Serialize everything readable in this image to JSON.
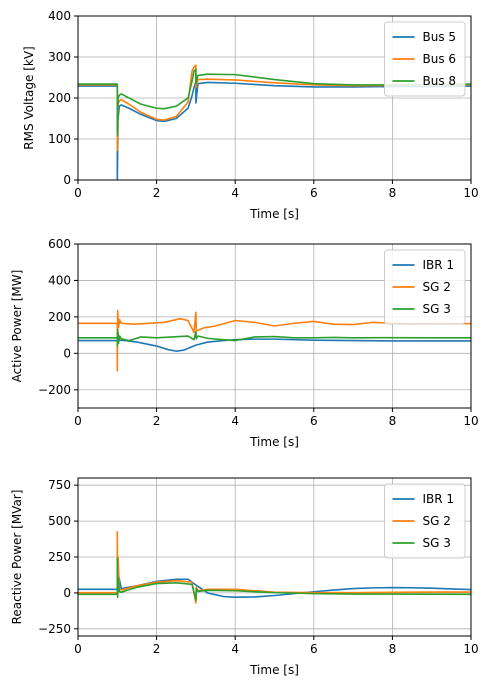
{
  "chart_data": [
    {
      "type": "line",
      "xlabel": "Time [s]",
      "ylabel": "RMS Voltage [kV]",
      "xlim": [
        0,
        10
      ],
      "ylim": [
        0,
        400
      ],
      "xticks": [
        "0",
        "2",
        "4",
        "6",
        "8",
        "10"
      ],
      "yticks": [
        "0",
        "100",
        "200",
        "300",
        "400"
      ],
      "grid": true,
      "legend": "top-right",
      "series": [
        {
          "name": "Bus 5",
          "color": "#1f77b4",
          "x": [
            0,
            1.0,
            1.0,
            1.02,
            1.05,
            1.1,
            1.3,
            1.6,
            2.0,
            2.2,
            2.5,
            2.8,
            2.9,
            2.95,
            3.0,
            3.0,
            3.05,
            3.3,
            4.0,
            5.0,
            6.0,
            7.0,
            8.0,
            9.0,
            10.0
          ],
          "y": [
            229,
            229,
            0,
            150,
            180,
            183,
            175,
            160,
            145,
            143,
            150,
            175,
            205,
            225,
            240,
            188,
            235,
            238,
            236,
            230,
            227,
            227,
            228,
            228,
            229
          ]
        },
        {
          "name": "Bus 6",
          "color": "#ff7f0e",
          "x": [
            0,
            1.0,
            1.0,
            1.02,
            1.05,
            1.1,
            1.3,
            1.6,
            2.0,
            2.2,
            2.5,
            2.8,
            2.9,
            2.95,
            3.0,
            3.0,
            3.05,
            3.3,
            4.0,
            5.0,
            6.0,
            7.0,
            8.0,
            9.0,
            10.0
          ],
          "y": [
            232,
            232,
            72,
            185,
            193,
            196,
            185,
            165,
            148,
            146,
            155,
            190,
            265,
            275,
            280,
            225,
            245,
            246,
            244,
            237,
            232,
            230,
            231,
            232,
            232
          ]
        },
        {
          "name": "Bus 8",
          "color": "#2ca02c",
          "x": [
            0,
            1.0,
            1.0,
            1.02,
            1.05,
            1.1,
            1.3,
            1.6,
            2.0,
            2.2,
            2.5,
            2.8,
            2.9,
            2.95,
            3.0,
            3.0,
            3.05,
            3.3,
            4.0,
            5.0,
            6.0,
            7.0,
            8.0,
            9.0,
            10.0
          ],
          "y": [
            234,
            234,
            110,
            200,
            207,
            210,
            200,
            185,
            175,
            174,
            180,
            200,
            240,
            265,
            270,
            235,
            255,
            258,
            257,
            245,
            235,
            232,
            232,
            233,
            234
          ]
        }
      ]
    },
    {
      "type": "line",
      "xlabel": "Time [s]",
      "ylabel": "Active Power [MW]",
      "xlim": [
        0,
        10
      ],
      "ylim": [
        -300,
        600
      ],
      "xticks": [
        "0",
        "2",
        "4",
        "6",
        "8",
        "10"
      ],
      "yticks": [
        "−200",
        "0",
        "200",
        "400",
        "600"
      ],
      "ytick_values": [
        -200,
        0,
        200,
        400,
        600
      ],
      "grid": true,
      "legend": "top-right",
      "series": [
        {
          "name": "IBR 1",
          "color": "#1f77b4",
          "x": [
            0,
            1.0,
            1.0,
            1.05,
            1.2,
            1.5,
            2.0,
            2.3,
            2.5,
            2.7,
            3.0,
            3.3,
            3.7,
            4.0,
            4.5,
            5.0,
            6.0,
            7.0,
            8.0,
            9.0,
            10.0
          ],
          "y": [
            70,
            70,
            130,
            72,
            70,
            62,
            40,
            20,
            12,
            18,
            45,
            62,
            70,
            75,
            78,
            78,
            72,
            70,
            68,
            68,
            68
          ]
        },
        {
          "name": "SG 2",
          "color": "#ff7f0e",
          "x": [
            0,
            1.0,
            1.0,
            1.01,
            1.03,
            1.06,
            1.1,
            1.4,
            1.8,
            2.2,
            2.6,
            2.8,
            2.95,
            3.0,
            3.01,
            3.05,
            3.2,
            3.5,
            4.0,
            4.5,
            5.0,
            5.5,
            6.0,
            6.5,
            7.0,
            7.5,
            8.0,
            8.5,
            9.0,
            9.5,
            10.0
          ],
          "y": [
            165,
            165,
            -95,
            235,
            140,
            185,
            165,
            160,
            165,
            170,
            190,
            180,
            115,
            225,
            130,
            125,
            140,
            150,
            180,
            170,
            150,
            165,
            175,
            160,
            158,
            170,
            165,
            162,
            165,
            163,
            163
          ]
        },
        {
          "name": "SG 3",
          "color": "#2ca02c",
          "x": [
            0,
            1.0,
            1.0,
            1.01,
            1.03,
            1.06,
            1.1,
            1.3,
            1.6,
            2.0,
            2.4,
            2.8,
            2.95,
            3.0,
            3.01,
            3.05,
            3.3,
            3.7,
            4.0,
            4.5,
            5.0,
            5.5,
            6.0,
            6.5,
            7.0,
            8.0,
            9.0,
            10.0
          ],
          "y": [
            85,
            85,
            40,
            130,
            55,
            95,
            80,
            70,
            90,
            85,
            90,
            95,
            75,
            120,
            80,
            95,
            82,
            75,
            70,
            90,
            92,
            85,
            85,
            87,
            85,
            86,
            85,
            85
          ]
        }
      ]
    },
    {
      "type": "line",
      "xlabel": "Time [s]",
      "ylabel": "Reactive Power [MVar]",
      "xlim": [
        0,
        10
      ],
      "ylim": [
        -300,
        800
      ],
      "xticks": [
        "0",
        "2",
        "4",
        "6",
        "8",
        "10"
      ],
      "yticks": [
        "−250",
        "0",
        "250",
        "500",
        "750"
      ],
      "ytick_values": [
        -250,
        0,
        250,
        500,
        750
      ],
      "grid": true,
      "legend": "top-right",
      "series": [
        {
          "name": "IBR 1",
          "color": "#1f77b4",
          "x": [
            0,
            1.0,
            1.0,
            1.1,
            1.5,
            2.0,
            2.5,
            2.8,
            3.0,
            3.3,
            3.7,
            4.0,
            4.5,
            5.0,
            5.5,
            6.0,
            6.5,
            7.0,
            7.5,
            8.0,
            8.5,
            9.0,
            9.5,
            10.0
          ],
          "y": [
            25,
            25,
            170,
            30,
            50,
            80,
            95,
            95,
            55,
            0,
            -25,
            -30,
            -28,
            -18,
            -5,
            8,
            20,
            30,
            35,
            37,
            36,
            33,
            28,
            23
          ]
        },
        {
          "name": "SG 2",
          "color": "#ff7f0e",
          "x": [
            0,
            1.0,
            1.0,
            1.01,
            1.02,
            1.05,
            1.1,
            1.5,
            2.0,
            2.5,
            2.9,
            3.0,
            3.01,
            3.05,
            3.3,
            4.0,
            5.0,
            6.0,
            7.0,
            8.0,
            9.0,
            10.0
          ],
          "y": [
            2,
            2,
            425,
            80,
            250,
            30,
            20,
            50,
            75,
            85,
            75,
            -70,
            40,
            15,
            25,
            25,
            5,
            2,
            2,
            4,
            6,
            6
          ]
        },
        {
          "name": "SG 3",
          "color": "#2ca02c",
          "x": [
            0,
            1.0,
            1.0,
            1.01,
            1.02,
            1.05,
            1.1,
            1.5,
            2.0,
            2.5,
            2.9,
            3.0,
            3.01,
            3.05,
            3.3,
            4.0,
            5.0,
            6.0,
            7.0,
            8.0,
            9.0,
            10.0
          ],
          "y": [
            -10,
            -10,
            240,
            -30,
            100,
            10,
            5,
            40,
            65,
            70,
            60,
            -50,
            30,
            10,
            18,
            15,
            2,
            -5,
            -8,
            -8,
            -9,
            -10
          ]
        }
      ]
    }
  ]
}
